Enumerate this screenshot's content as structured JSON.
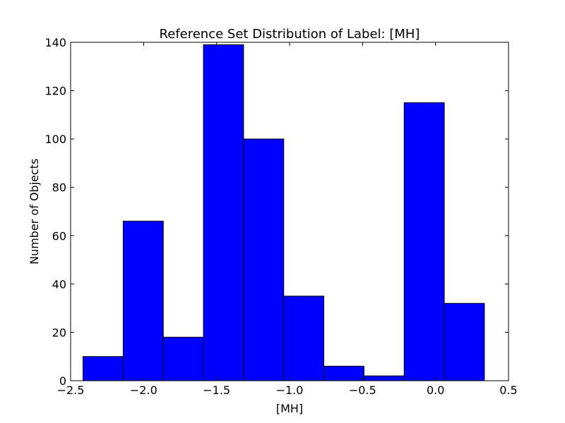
{
  "chart_data": {
    "type": "bar",
    "title": "Reference Set Distribution of Label: [MH]",
    "xlabel": "[MH]",
    "ylabel": "Number of Objects",
    "xlim": [
      -2.5,
      0.5
    ],
    "ylim": [
      0,
      140
    ],
    "xticks": [
      "−2.5",
      "−2.0",
      "−1.5",
      "−1.0",
      "−0.5",
      "0.0",
      "0.5"
    ],
    "yticks": [
      "0",
      "20",
      "40",
      "60",
      "80",
      "100",
      "120",
      "140"
    ],
    "bins": [
      {
        "start": -2.415,
        "end": -2.14,
        "count": 10
      },
      {
        "start": -2.14,
        "end": -1.865,
        "count": 66
      },
      {
        "start": -1.865,
        "end": -1.59,
        "count": 18
      },
      {
        "start": -1.59,
        "end": -1.315,
        "count": 139
      },
      {
        "start": -1.315,
        "end": -1.04,
        "count": 100
      },
      {
        "start": -1.04,
        "end": -0.765,
        "count": 35
      },
      {
        "start": -0.765,
        "end": -0.49,
        "count": 6
      },
      {
        "start": -0.49,
        "end": -0.215,
        "count": 2
      },
      {
        "start": -0.215,
        "end": 0.06,
        "count": 115
      },
      {
        "start": 0.06,
        "end": 0.335,
        "count": 32
      }
    ],
    "bar_color": "#0000ff",
    "edge_color": "#000000",
    "grid": false,
    "legend": false
  }
}
